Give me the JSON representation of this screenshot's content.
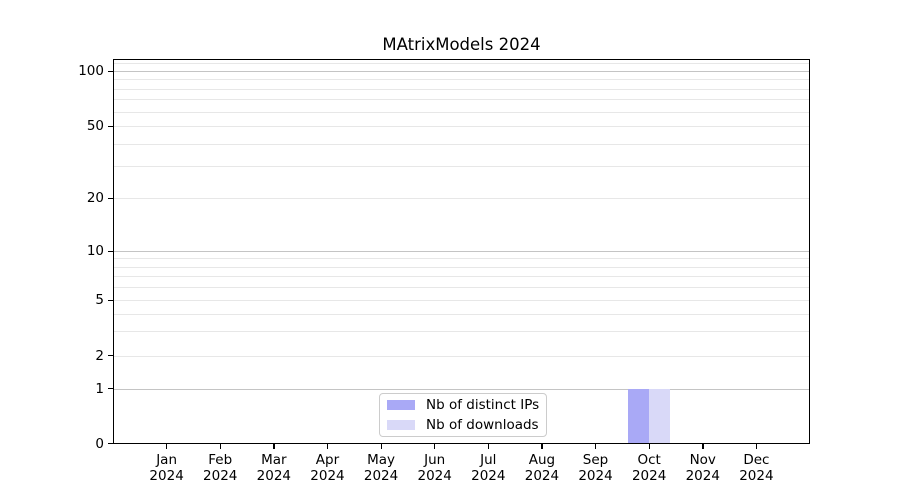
{
  "chart_data": {
    "type": "bar",
    "title": "MAtrixModels 2024",
    "categories": [
      "Jan",
      "Feb",
      "Mar",
      "Apr",
      "May",
      "Jun",
      "Jul",
      "Aug",
      "Sep",
      "Oct",
      "Nov",
      "Dec"
    ],
    "category_year": "2024",
    "series": [
      {
        "name": "Nb of distinct IPs",
        "color": "#a9a9f6",
        "values": [
          0,
          0,
          0,
          0,
          0,
          0,
          0,
          0,
          0,
          1,
          0,
          0
        ]
      },
      {
        "name": "Nb of downloads",
        "color": "#d9d9f8",
        "values": [
          0,
          0,
          0,
          0,
          0,
          0,
          0,
          0,
          0,
          1,
          0,
          0
        ]
      }
    ],
    "xlabel": "",
    "ylabel": "",
    "yscale": "log (linear below 1)",
    "ylim": [
      0,
      116
    ],
    "yticks": [
      100,
      50,
      20,
      10,
      5,
      2,
      1,
      0
    ],
    "major_gridlines": [
      1,
      10,
      100
    ],
    "minor_gridlines": [
      3,
      4,
      6,
      7,
      8,
      9,
      30,
      40,
      60,
      70,
      80,
      90,
      110
    ],
    "grid": true,
    "legend_position": "lower-center-inside",
    "background_color": "#ffffff",
    "axis_color": "#000000"
  }
}
